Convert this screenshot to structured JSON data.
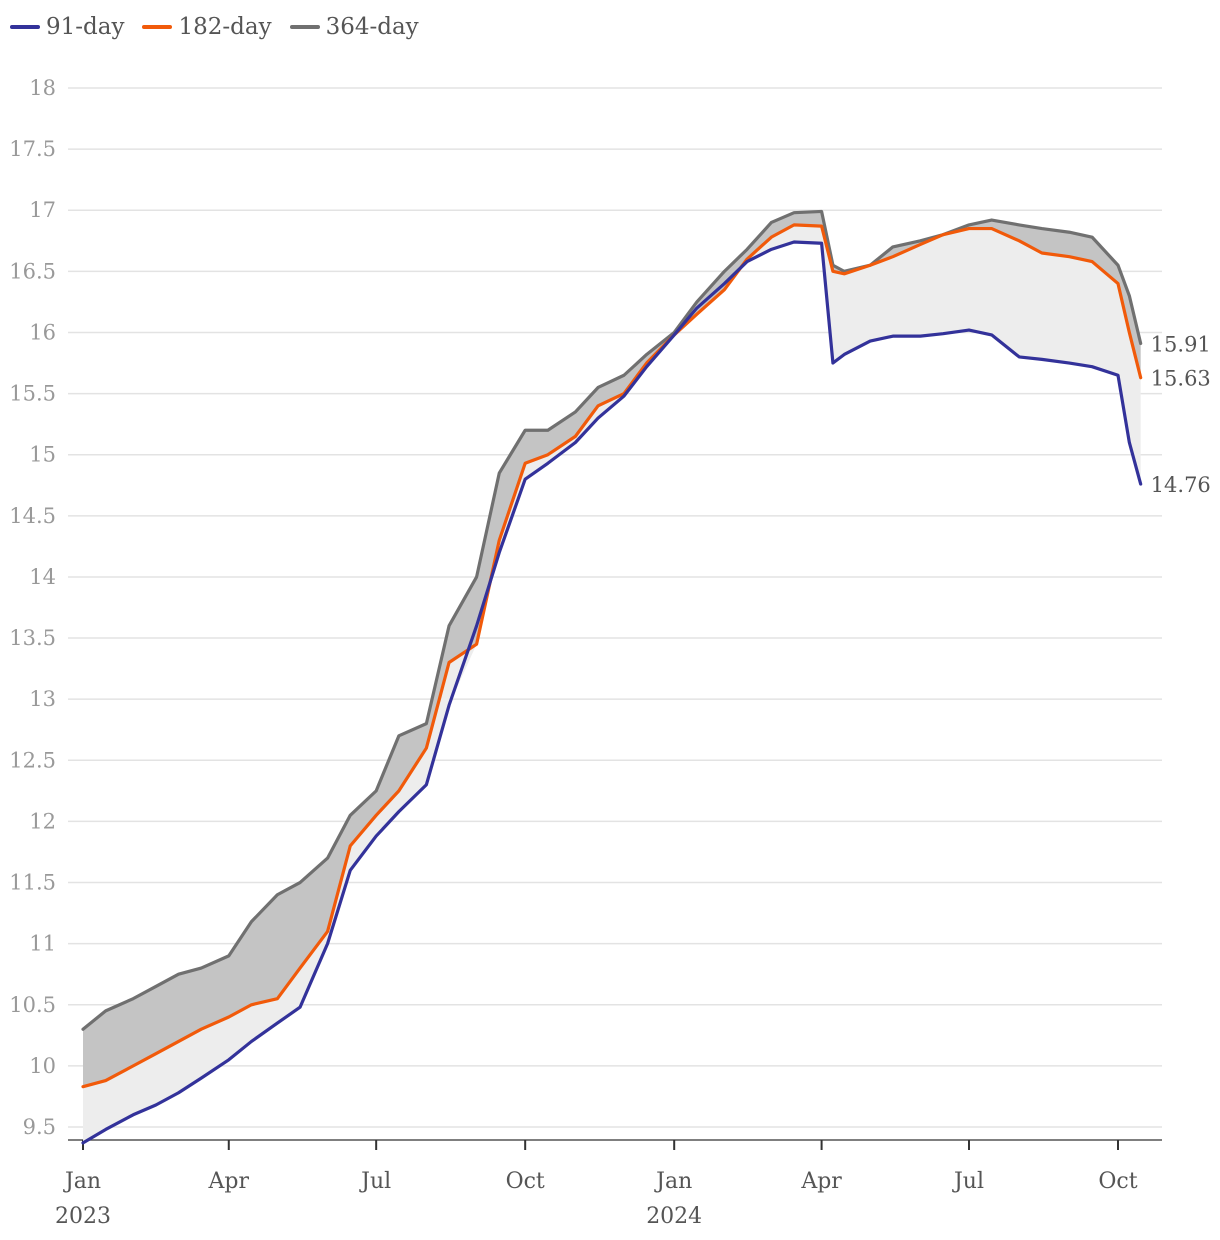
{
  "chart_data": {
    "type": "line",
    "title": "",
    "xlabel": "",
    "ylabel": "",
    "ylim": [
      9.4,
      18
    ],
    "yticks": [
      9.5,
      10,
      10.5,
      11,
      11.5,
      12,
      12.5,
      13,
      13.5,
      14,
      14.5,
      15,
      15.5,
      16,
      16.5,
      17,
      17.5,
      18
    ],
    "grid": true,
    "legend_position": "top-left",
    "xticks": [
      {
        "date": "2023-01-01",
        "label": "Jan",
        "year": "2023"
      },
      {
        "date": "2023-04-01",
        "label": "Apr",
        "year": ""
      },
      {
        "date": "2023-07-01",
        "label": "Jul",
        "year": ""
      },
      {
        "date": "2023-10-01",
        "label": "Oct",
        "year": ""
      },
      {
        "date": "2024-01-01",
        "label": "Jan",
        "year": "2024"
      },
      {
        "date": "2024-04-01",
        "label": "Apr",
        "year": ""
      },
      {
        "date": "2024-07-01",
        "label": "Jul",
        "year": ""
      },
      {
        "date": "2024-10-01",
        "label": "Oct",
        "year": ""
      }
    ],
    "x": [
      "2023-01-01",
      "2023-01-15",
      "2023-02-01",
      "2023-02-15",
      "2023-03-01",
      "2023-03-15",
      "2023-04-01",
      "2023-04-15",
      "2023-05-01",
      "2023-05-15",
      "2023-06-01",
      "2023-06-15",
      "2023-07-01",
      "2023-07-15",
      "2023-08-01",
      "2023-08-15",
      "2023-09-01",
      "2023-09-15",
      "2023-10-01",
      "2023-10-15",
      "2023-11-01",
      "2023-11-15",
      "2023-12-01",
      "2023-12-15",
      "2024-01-01",
      "2024-01-15",
      "2024-02-01",
      "2024-02-15",
      "2024-03-01",
      "2024-03-15",
      "2024-04-01",
      "2024-04-08",
      "2024-04-15",
      "2024-05-01",
      "2024-05-15",
      "2024-06-01",
      "2024-06-15",
      "2024-07-01",
      "2024-07-15",
      "2024-08-01",
      "2024-08-15",
      "2024-09-01",
      "2024-09-15",
      "2024-10-01",
      "2024-10-08",
      "2024-10-15"
    ],
    "series": [
      {
        "name": "91-day",
        "color": "#33329a",
        "end_label": "14.76",
        "values": [
          9.37,
          9.48,
          9.6,
          9.68,
          9.78,
          9.9,
          10.05,
          10.2,
          10.35,
          10.48,
          11.0,
          11.6,
          11.88,
          12.08,
          12.3,
          12.95,
          13.6,
          14.2,
          14.8,
          14.93,
          15.1,
          15.3,
          15.48,
          15.72,
          15.98,
          16.2,
          16.4,
          16.58,
          16.68,
          16.74,
          16.73,
          15.75,
          15.82,
          15.93,
          15.97,
          15.97,
          15.99,
          16.02,
          15.98,
          15.8,
          15.78,
          15.75,
          15.72,
          15.65,
          15.1,
          14.76
        ]
      },
      {
        "name": "182-day",
        "color": "#f15a0a",
        "end_label": "15.63",
        "values": [
          9.83,
          9.88,
          10.0,
          10.1,
          10.2,
          10.3,
          10.4,
          10.5,
          10.55,
          10.8,
          11.1,
          11.8,
          12.05,
          12.25,
          12.6,
          13.3,
          13.45,
          14.3,
          14.93,
          15.0,
          15.15,
          15.4,
          15.5,
          15.75,
          15.98,
          16.15,
          16.35,
          16.6,
          16.78,
          16.88,
          16.87,
          16.5,
          16.48,
          16.55,
          16.62,
          16.72,
          16.8,
          16.85,
          16.85,
          16.75,
          16.65,
          16.62,
          16.58,
          16.4,
          16.0,
          15.63
        ]
      },
      {
        "name": "364-day",
        "color": "#707070",
        "end_label": "15.91",
        "values": [
          10.3,
          10.45,
          10.55,
          10.65,
          10.75,
          10.8,
          10.9,
          11.18,
          11.4,
          11.5,
          11.7,
          12.05,
          12.25,
          12.7,
          12.8,
          13.6,
          14.0,
          14.85,
          15.2,
          15.2,
          15.35,
          15.55,
          15.65,
          15.82,
          16.0,
          16.25,
          16.5,
          16.68,
          16.9,
          16.98,
          16.99,
          16.55,
          16.5,
          16.55,
          16.7,
          16.75,
          16.8,
          16.88,
          16.92,
          16.88,
          16.85,
          16.82,
          16.78,
          16.55,
          16.3,
          15.91
        ]
      }
    ]
  }
}
